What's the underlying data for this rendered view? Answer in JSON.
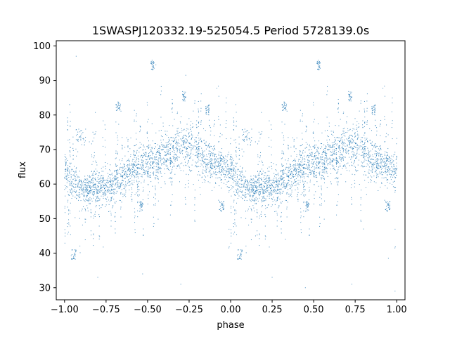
{
  "chart_data": {
    "type": "scatter",
    "title": "1SWASPJ120332.19-525054.5 Period 5728139.0s",
    "xlabel": "phase",
    "ylabel": "flux",
    "xlim": [
      -1.05,
      1.05
    ],
    "ylim": [
      26.5,
      101.5
    ],
    "xticks": [
      -1.0,
      -0.75,
      -0.5,
      -0.25,
      0.0,
      0.25,
      0.5,
      0.75,
      1.0
    ],
    "xtick_labels": [
      "−1.00",
      "−0.75",
      "−0.50",
      "−0.25",
      "0.00",
      "0.25",
      "0.50",
      "0.75",
      "1.00"
    ],
    "yticks": [
      30,
      40,
      50,
      60,
      70,
      80,
      90,
      100
    ],
    "ytick_labels": [
      "30",
      "40",
      "50",
      "60",
      "70",
      "80",
      "90",
      "100"
    ],
    "grid": false,
    "marker_color": "#1f77b4",
    "marker_alpha": 0.8,
    "folded_phase_range": [
      -1.0,
      1.0
    ],
    "profile": {
      "phase": [
        0.0,
        0.05,
        0.1,
        0.15,
        0.2,
        0.25,
        0.3,
        0.35,
        0.4,
        0.45,
        0.5,
        0.55,
        0.6,
        0.65,
        0.7,
        0.75,
        0.8,
        0.85,
        0.9,
        0.95,
        1.0
      ],
      "flux": [
        64,
        61,
        59,
        59,
        59,
        59,
        60,
        62,
        64,
        65,
        66,
        67,
        68,
        69,
        71,
        71,
        69,
        67,
        66,
        65,
        64
      ],
      "scatter": [
        3.0,
        3.0,
        2.5,
        2.5,
        2.5,
        2.5,
        3.0,
        3.0,
        3.0,
        3.0,
        3.0,
        3.0,
        3.5,
        3.5,
        4.0,
        4.0,
        4.0,
        3.5,
        3.0,
        3.0,
        3.0
      ]
    },
    "clusters": [
      {
        "phase": [
          0.07,
          0.13
        ],
        "flux": [
          71,
          76
        ]
      },
      {
        "phase": [
          0.1,
          0.3
        ],
        "flux": [
          51,
          56
        ]
      },
      {
        "phase": [
          0.45,
          0.47
        ],
        "flux": [
          52,
          55
        ]
      },
      {
        "phase": [
          0.04,
          0.07
        ],
        "flux": [
          38,
          41
        ]
      },
      {
        "phase": [
          0.31,
          0.34
        ],
        "flux": [
          81,
          84
        ]
      },
      {
        "phase": [
          0.52,
          0.54
        ],
        "flux": [
          93,
          96
        ]
      },
      {
        "phase": [
          0.71,
          0.73
        ],
        "flux": [
          84,
          87
        ]
      },
      {
        "phase": [
          0.85,
          0.87
        ],
        "flux": [
          80,
          83
        ]
      },
      {
        "phase": [
          0.93,
          0.96
        ],
        "flux": [
          52,
          55
        ]
      }
    ],
    "outliers": [
      {
        "x": 0.95,
        "y": 38.5
      },
      {
        "x": 0.8,
        "y": 47
      },
      {
        "x": 0.62,
        "y": 75
      },
      {
        "x": 0.45,
        "y": 30
      },
      {
        "x": 0.33,
        "y": 44
      },
      {
        "x": 0.25,
        "y": 33
      },
      {
        "x": 0.15,
        "y": 45
      },
      {
        "x": -0.3,
        "y": 31
      },
      {
        "x": -0.8,
        "y": 33
      },
      {
        "x": -0.93,
        "y": 97
      },
      {
        "x": -0.45,
        "y": 94.5
      },
      {
        "x": -0.27,
        "y": 91.5
      },
      {
        "x": 0.73,
        "y": 31
      },
      {
        "x": 0.99,
        "y": 29
      },
      {
        "x": -0.53,
        "y": 34
      },
      {
        "x": -0.97,
        "y": 83
      }
    ]
  }
}
